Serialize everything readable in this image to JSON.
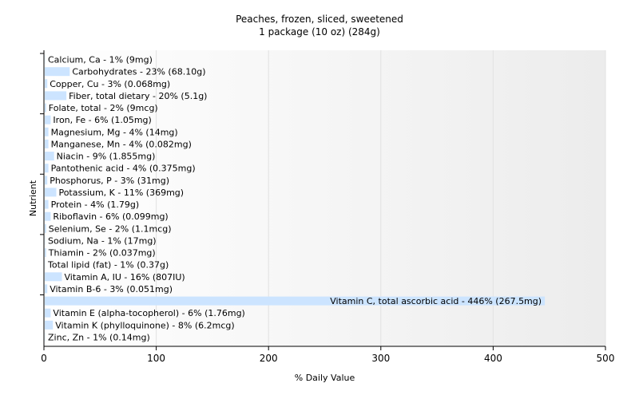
{
  "chart_data": {
    "type": "bar",
    "orientation": "horizontal",
    "title": "Peaches, frozen, sliced, sweetened",
    "subtitle": "1 package (10 oz) (284g)",
    "xlabel": "% Daily Value",
    "ylabel": "Nutrient",
    "xlim": [
      0,
      500
    ],
    "xticks": [
      0,
      100,
      200,
      300,
      400,
      500
    ],
    "grid": true,
    "bar_color": "#cce4ff",
    "categories": [
      "Calcium, Ca",
      "Carbohydrates",
      "Copper, Cu",
      "Fiber, total dietary",
      "Folate, total",
      "Iron, Fe",
      "Magnesium, Mg",
      "Manganese, Mn",
      "Niacin",
      "Pantothenic acid",
      "Phosphorus, P",
      "Potassium, K",
      "Protein",
      "Riboflavin",
      "Selenium, Se",
      "Sodium, Na",
      "Thiamin",
      "Total lipid (fat)",
      "Vitamin A, IU",
      "Vitamin B-6",
      "Vitamin C, total ascorbic acid",
      "Vitamin E (alpha-tocopherol)",
      "Vitamin K (phylloquinone)",
      "Zinc, Zn"
    ],
    "values": [
      1,
      23,
      3,
      20,
      2,
      6,
      4,
      4,
      9,
      4,
      3,
      11,
      4,
      6,
      2,
      1,
      2,
      1,
      16,
      3,
      446,
      6,
      8,
      1
    ],
    "labels": [
      "Calcium, Ca - 1% (9mg)",
      "Carbohydrates - 23% (68.10g)",
      "Copper, Cu - 3% (0.068mg)",
      "Fiber, total dietary - 20% (5.1g)",
      "Folate, total - 2% (9mcg)",
      "Iron, Fe - 6% (1.05mg)",
      "Magnesium, Mg - 4% (14mg)",
      "Manganese, Mn - 4% (0.082mg)",
      "Niacin - 9% (1.855mg)",
      "Pantothenic acid - 4% (0.375mg)",
      "Phosphorus, P - 3% (31mg)",
      "Potassium, K - 11% (369mg)",
      "Protein - 4% (1.79g)",
      "Riboflavin - 6% (0.099mg)",
      "Selenium, Se - 2% (1.1mcg)",
      "Sodium, Na - 1% (17mg)",
      "Thiamin - 2% (0.037mg)",
      "Total lipid (fat) - 1% (0.37g)",
      "Vitamin A, IU - 16% (807IU)",
      "Vitamin B-6 - 3% (0.051mg)",
      "Vitamin C, total ascorbic acid - 446% (267.5mg)",
      "Vitamin E (alpha-tocopherol) - 6% (1.76mg)",
      "Vitamin K (phylloquinone) - 8% (6.2mcg)",
      "Zinc, Zn - 1% (0.14mg)"
    ]
  }
}
